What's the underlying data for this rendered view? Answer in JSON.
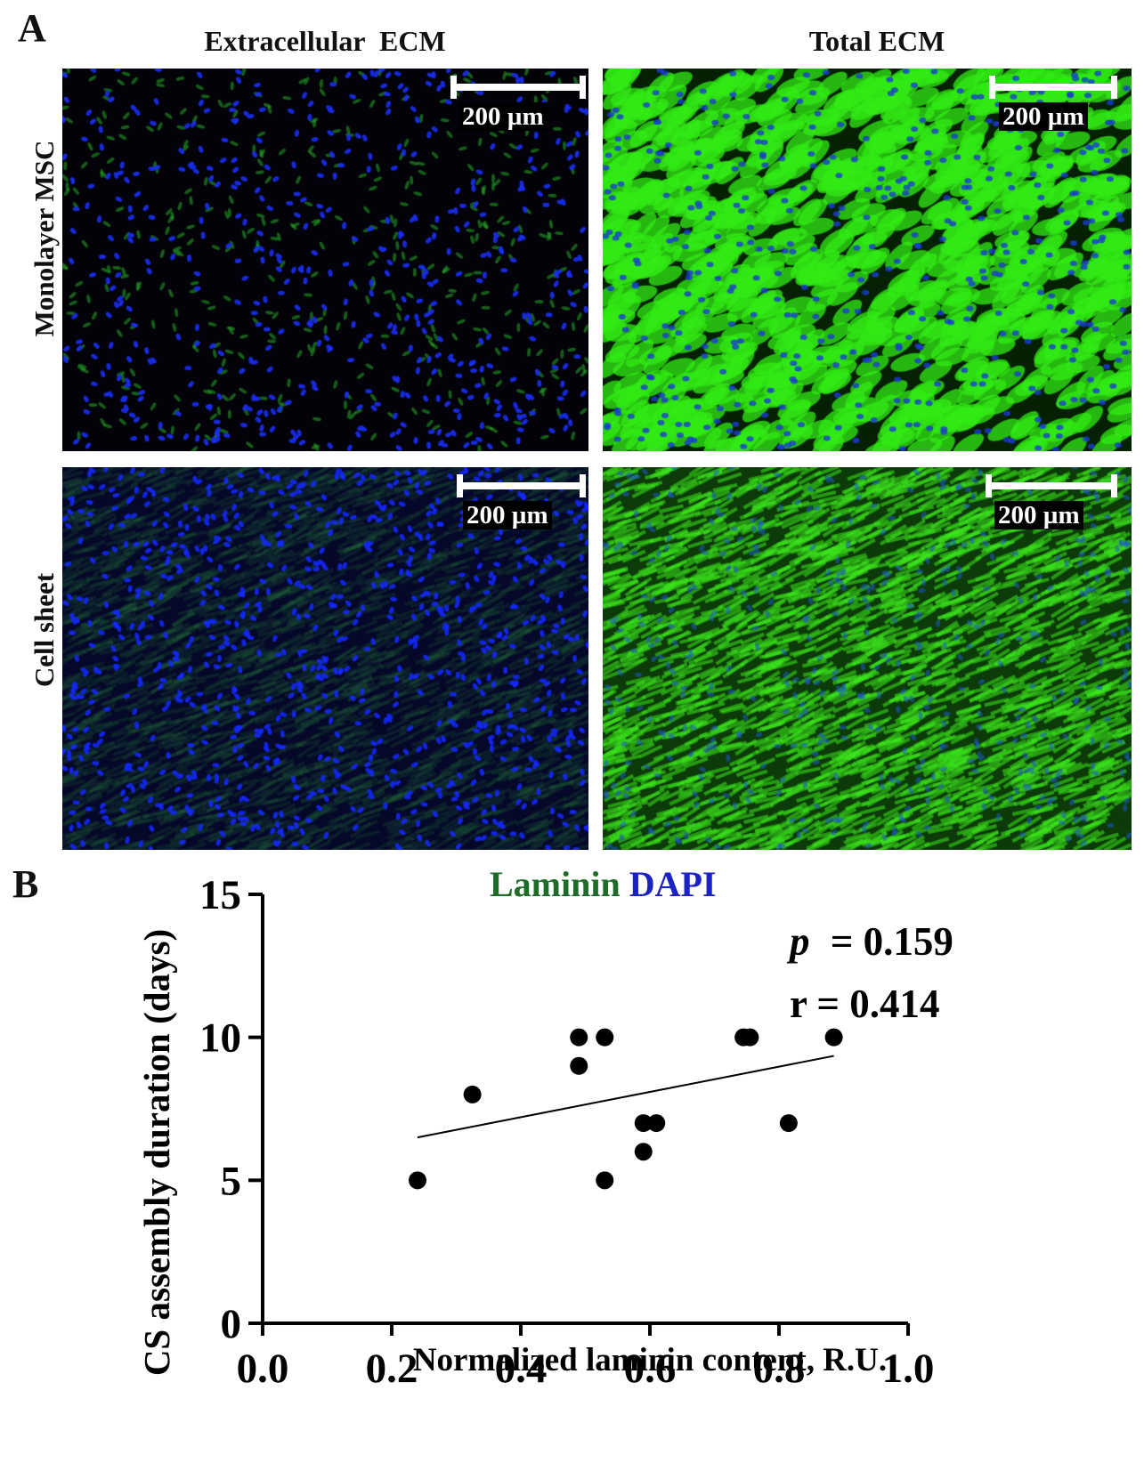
{
  "figure": {
    "panel_a_label": "A",
    "panel_b_label": "B",
    "columns": [
      "Extracellular  ECM",
      "Total ECM"
    ],
    "rows": [
      "Monolayer MSC",
      "Cell sheet"
    ],
    "scale_bar_label": "200 µm",
    "legend": {
      "laminin": "Laminin",
      "dapi": "DAPI"
    },
    "stats": {
      "p_symbol": "p",
      "p_value": "= 0.159",
      "r_text": "r = 0.414"
    },
    "colors": {
      "laminin": "#1e6b2a",
      "dapi": "#1a22c4",
      "micro_green": "#3cff1e",
      "micro_blue": "#1428ff"
    }
  },
  "chart_data": {
    "type": "scatter",
    "title": "",
    "xlabel": "Normalized laminin content, R.U.",
    "ylabel": "CS assembly duration (days)",
    "xlim": [
      0.0,
      1.0
    ],
    "ylim": [
      0,
      15
    ],
    "x_ticks": [
      "0.0",
      "0.2",
      "0.4",
      "0.6",
      "0.8",
      "1.0"
    ],
    "y_ticks": [
      "0",
      "5",
      "10",
      "15"
    ],
    "x_tick_values": [
      0.0,
      0.2,
      0.4,
      0.6,
      0.8,
      1.0
    ],
    "y_tick_values": [
      0,
      5,
      10,
      15
    ],
    "points": [
      {
        "x": 0.24,
        "y": 5
      },
      {
        "x": 0.325,
        "y": 8
      },
      {
        "x": 0.49,
        "y": 10
      },
      {
        "x": 0.49,
        "y": 9
      },
      {
        "x": 0.53,
        "y": 10
      },
      {
        "x": 0.53,
        "y": 5
      },
      {
        "x": 0.59,
        "y": 7
      },
      {
        "x": 0.59,
        "y": 6
      },
      {
        "x": 0.61,
        "y": 7
      },
      {
        "x": 0.745,
        "y": 10
      },
      {
        "x": 0.755,
        "y": 10
      },
      {
        "x": 0.815,
        "y": 7
      },
      {
        "x": 0.885,
        "y": 10
      }
    ],
    "regression": {
      "x": [
        0.24,
        0.885
      ],
      "y": [
        6.5,
        9.35
      ]
    },
    "grid": false,
    "legend": "none"
  }
}
